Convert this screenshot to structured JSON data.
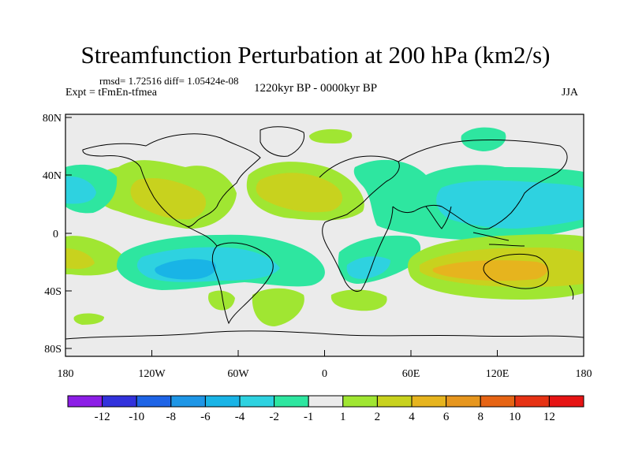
{
  "header": {
    "title": "Streamfunction Perturbation at 200 hPa (km2/s)",
    "stats": "rmsd= 1.72516 diff= 1.05424e-08",
    "experiment": "Expt = tFmEn-tfmea",
    "period": "1220kyr BP - 0000kyr BP",
    "season": "JJA"
  },
  "map": {
    "lat_labels": [
      "80N",
      "40N",
      "0",
      "40S",
      "80S"
    ],
    "lon_labels": [
      "180",
      "120W",
      "60W",
      "0",
      "60E",
      "120E",
      "180"
    ],
    "background_color": "#ebebeb"
  },
  "colorbar": {
    "labels": [
      "-12",
      "-10",
      "-8",
      "-6",
      "-4",
      "-2",
      "-1",
      "1",
      "2",
      "4",
      "6",
      "8",
      "10",
      "12"
    ],
    "colors": [
      "#8c1ee6",
      "#3232dc",
      "#1e64e6",
      "#1e96e6",
      "#19b4e6",
      "#2ed2e0",
      "#2ee6a0",
      "#ebebeb",
      "#a0e632",
      "#c8d21e",
      "#e6b41e",
      "#e6961e",
      "#e66414",
      "#e63214",
      "#e61414"
    ]
  }
}
